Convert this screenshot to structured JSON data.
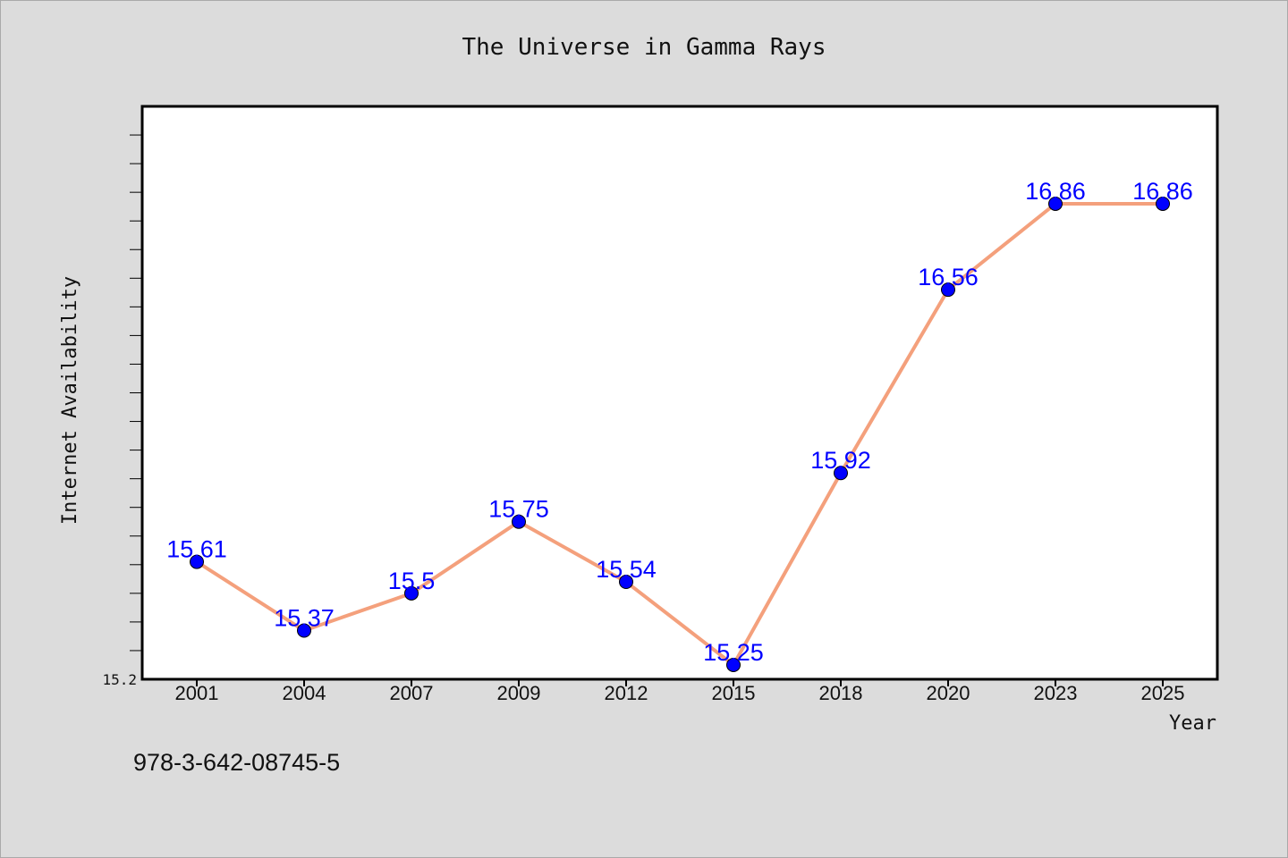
{
  "chart_data": {
    "type": "line",
    "title": "The Universe in Gamma Rays",
    "xlabel": "Year",
    "ylabel": "Internet Availability",
    "categories": [
      "2001",
      "2004",
      "2007",
      "2009",
      "2012",
      "2015",
      "2018",
      "2020",
      "2023",
      "2025"
    ],
    "series": [
      {
        "values": [
          15.61,
          15.37,
          15.5,
          15.75,
          15.54,
          15.25,
          15.92,
          16.56,
          16.86,
          16.86
        ],
        "labels": [
          "15.61",
          "15.37",
          "15.5",
          "15.75",
          "15.54",
          "15.25",
          "15.92",
          "16.56",
          "16.86",
          "16.86"
        ]
      }
    ],
    "ylim": [
      15.2,
      17.2
    ],
    "y_tick_labels": [
      "15.2"
    ],
    "y_minor_tick_step": 0.1,
    "grid": false,
    "colors": {
      "line": "#f4a07c",
      "marker": "#0000ff",
      "data_label": "#0000ff",
      "background": "#dcdcdc",
      "plot_background": "#ffffff"
    }
  },
  "footer": {
    "isbn": "978-3-642-08745-5"
  }
}
